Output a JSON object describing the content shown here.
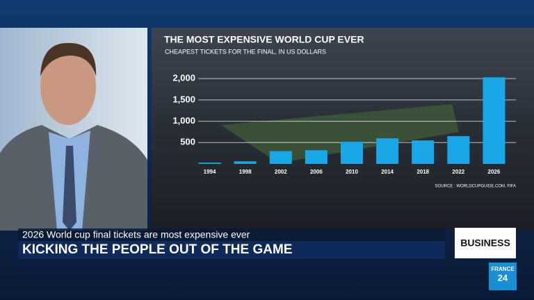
{
  "chart_data": {
    "type": "bar",
    "title": "THE MOST EXPENSIVE WORLD CUP EVER",
    "subtitle": "CHEAPEST TICKETS FOR THE FINAL, IN US DOLLARS",
    "source": "SOURCE : WORLDCUPGUIDE.COM, FIFA",
    "categories": [
      "1994",
      "1998",
      "2002",
      "2006",
      "2010",
      "2014",
      "2018",
      "2022",
      "2026"
    ],
    "values": [
      30,
      60,
      300,
      320,
      520,
      600,
      550,
      650,
      2030
    ],
    "color": "#1aa7e8",
    "ylim": [
      0,
      2100
    ],
    "yticks": [
      500,
      {
        "value": 1000,
        "label": "1,000"
      },
      {
        "value": 1500,
        "label": "1,500"
      },
      {
        "value": 2000,
        "label": "2,000"
      }
    ],
    "grid": true
  },
  "lower_third": {
    "subtitle": "2026 World cup final tickets are most expensive ever",
    "headline": "KICKING THE PEOPLE OUT OF THE GAME",
    "tag": "BUSINESS"
  },
  "logo": {
    "line1": "FRANCE",
    "line2": "24"
  }
}
